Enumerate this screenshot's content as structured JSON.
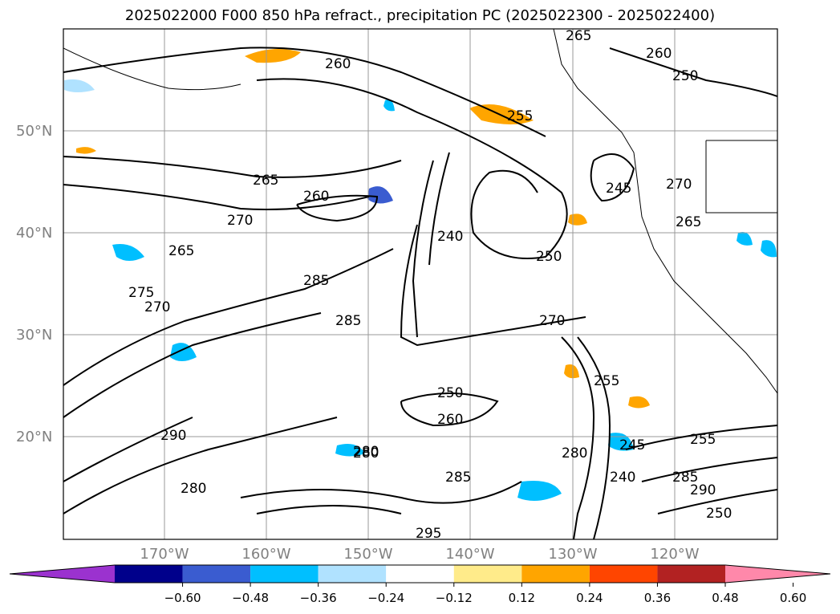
{
  "title": "2025022000 F000 850 hPa refract., precipitation PC (2025022300 - 2025022400)",
  "lat_labels": [
    "50°N",
    "40°N",
    "30°N",
    "20°N"
  ],
  "lon_labels": [
    "170°W",
    "160°W",
    "150°W",
    "140°W",
    "130°W",
    "120°W"
  ],
  "colorbar": {
    "ticks": [
      "−0.60",
      "−0.48",
      "−0.36",
      "−0.24",
      "−0.12",
      "0.12",
      "0.24",
      "0.36",
      "0.48",
      "0.60"
    ],
    "colors": [
      "#9b32cf",
      "#00008b",
      "#3a5cd0",
      "#00bfff",
      "#b0e2ff",
      "#ffffff",
      "#ffeb8a",
      "#ffa500",
      "#ff4500",
      "#b22222",
      "#ff88aa"
    ]
  },
  "contour_labels": [
    "260",
    "265",
    "255",
    "250",
    "265",
    "270",
    "260",
    "245",
    "240",
    "270",
    "265",
    "250",
    "285",
    "275",
    "270",
    "265",
    "280",
    "285",
    "250",
    "255",
    "260",
    "285",
    "280",
    "255",
    "290",
    "295",
    "280",
    "285",
    "290",
    "245",
    "240",
    "270",
    "260",
    "280",
    "250"
  ]
}
